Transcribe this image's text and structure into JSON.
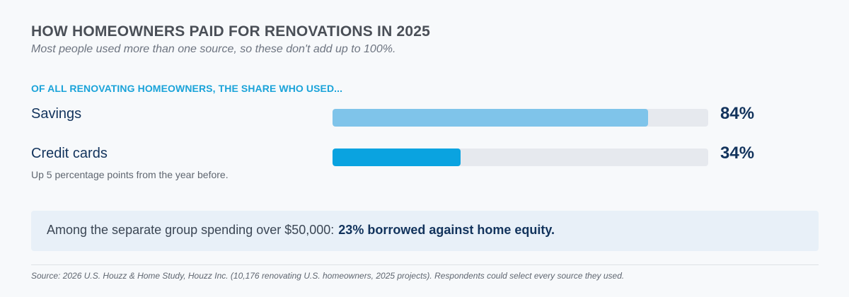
{
  "title": "HOW HOMEOWNERS PAID FOR RENOVATIONS IN 2025",
  "subtitle": "Most people used more than one source, so these don't add up to 100%.",
  "kicker": "OF ALL RENOVATING HOMEOWNERS, THE SHARE WHO USED...",
  "chart_data": {
    "type": "bar",
    "orientation": "horizontal",
    "categories": [
      "Savings",
      "Credit cards"
    ],
    "values": [
      84,
      34
    ],
    "value_labels": [
      "84%",
      "34%"
    ],
    "xlim": [
      0,
      100
    ],
    "units": "%",
    "notes": [
      "",
      "Up 5 percentage points from the year before."
    ],
    "colors": [
      "#7fc4ea",
      "#0aa3e0"
    ],
    "track_color": "#e6e9ee"
  },
  "callout": {
    "prefix": "Among the separate group spending over $50,000:",
    "highlight": "23% borrowed against home equity."
  },
  "source": "Source: 2026 U.S. Houzz & Home Study, Houzz Inc. (10,176 renovating U.S. homeowners, 2025 projects). Respondents could select every source they used."
}
